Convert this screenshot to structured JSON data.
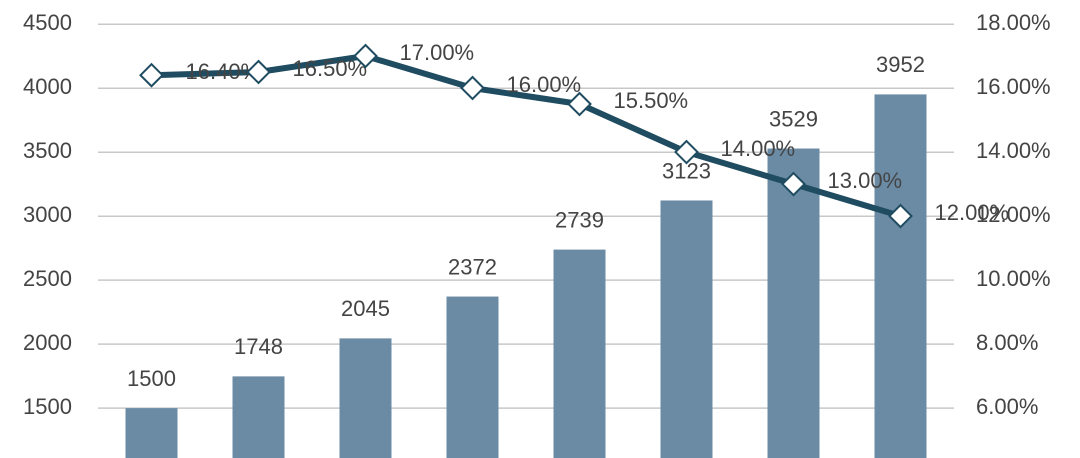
{
  "chart_data": {
    "type": "bar",
    "categories": [
      null,
      null,
      null,
      null,
      null,
      null,
      null,
      null
    ],
    "series": [
      {
        "type": "bar",
        "color": "#6b8ba5",
        "values": [
          1500,
          1748,
          2045,
          2372,
          2739,
          3123,
          3529,
          3952
        ]
      },
      {
        "type": "line",
        "axis": "y2",
        "color": "#1f4c61",
        "values": [
          16.4,
          16.5,
          17,
          16,
          15.5,
          14,
          13,
          12
        ],
        "value_labels": [
          "16.40%",
          "16.50%",
          "17.00%",
          "16.00%",
          "15.50%",
          "14.00%",
          "13.00%",
          "12.00%"
        ]
      }
    ],
    "ylim": [
      1110,
      4690
    ],
    "yticks": [
      1500,
      2000,
      2500,
      3000,
      3500,
      4000,
      4500
    ],
    "y2lim": [
      4.44,
      18.75
    ],
    "y2ticks": [
      {
        "value": 6,
        "label": "6.00%"
      },
      {
        "value": 8,
        "label": "8.00%"
      },
      {
        "value": 10,
        "label": "10.00%"
      },
      {
        "value": 12,
        "label": "12.00%"
      },
      {
        "value": 14,
        "label": "14.00%"
      },
      {
        "value": 16,
        "label": "16.00%"
      },
      {
        "value": 18,
        "label": "18.00%"
      }
    ],
    "grid": true
  }
}
